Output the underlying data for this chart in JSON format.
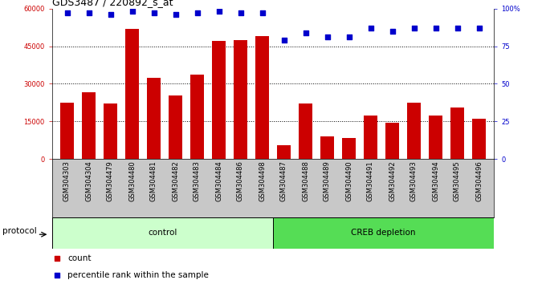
{
  "title": "GDS3487 / 220892_s_at",
  "samples": [
    "GSM304303",
    "GSM304304",
    "GSM304479",
    "GSM304480",
    "GSM304481",
    "GSM304482",
    "GSM304483",
    "GSM304484",
    "GSM304486",
    "GSM304498",
    "GSM304487",
    "GSM304488",
    "GSM304489",
    "GSM304490",
    "GSM304491",
    "GSM304492",
    "GSM304493",
    "GSM304494",
    "GSM304495",
    "GSM304496"
  ],
  "counts": [
    22500,
    26500,
    22000,
    52000,
    32500,
    25500,
    33500,
    47000,
    47500,
    49000,
    5500,
    22000,
    9000,
    8500,
    17500,
    14500,
    22500,
    17500,
    20500,
    16000
  ],
  "percentile_ranks": [
    97,
    97,
    96,
    98,
    97,
    96,
    97,
    98,
    97,
    97,
    79,
    84,
    81,
    81,
    87,
    85,
    87,
    87,
    87,
    87
  ],
  "bar_color": "#cc0000",
  "dot_color": "#0000cc",
  "ylim_left": [
    0,
    60000
  ],
  "yticks_left": [
    0,
    15000,
    30000,
    45000,
    60000
  ],
  "yticks_right": [
    0,
    25,
    50,
    75,
    100
  ],
  "yticklabels_right": [
    "0",
    "25",
    "50",
    "75",
    "100%"
  ],
  "grid_lines": [
    15000,
    30000,
    45000
  ],
  "control_count": 10,
  "control_label": "control",
  "treatment_label": "CREB depletion",
  "protocol_label": "protocol",
  "legend_count_label": "count",
  "legend_percentile_label": "percentile rank within the sample",
  "control_bg": "#ccffcc",
  "treatment_bg": "#55dd55",
  "gray_bg": "#c8c8c8",
  "title_fontsize": 9,
  "tick_fontsize": 6,
  "label_fontsize": 7.5
}
